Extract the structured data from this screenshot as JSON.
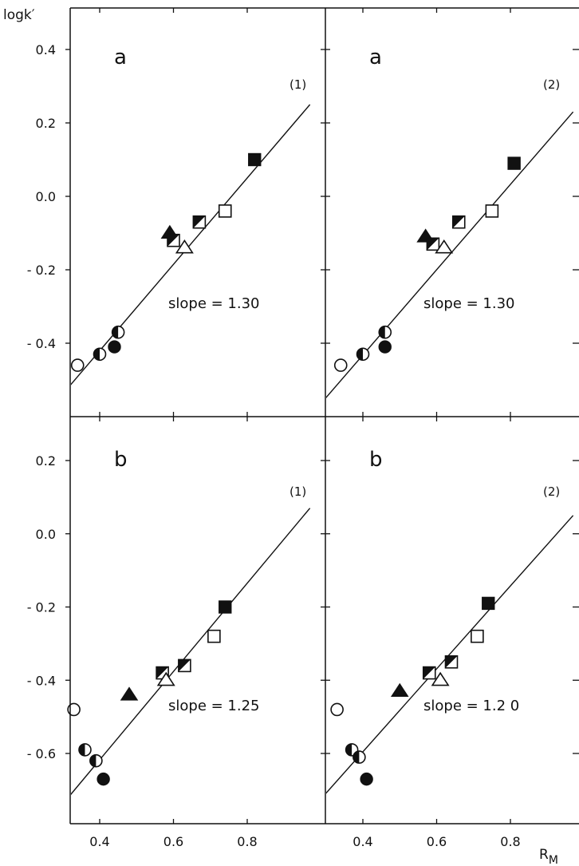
{
  "figure": {
    "y_axis_label": "logk′",
    "x_axis_label": "R_M",
    "x_ticks": [
      "0.4",
      "0.6",
      "0.8"
    ],
    "row_a_y_ticks": [
      "0.4",
      "0.2",
      "0.0",
      "- 0.2",
      "- 0.4"
    ],
    "row_b_y_ticks": [
      "0.2",
      "0.0",
      "- 0.2",
      "- 0.4",
      "- 0.6"
    ],
    "line_color": "#111111",
    "marker_color": "#111111"
  },
  "chart_data": [
    {
      "type": "scatter",
      "row": "a",
      "col": 1,
      "panel_letter": "a",
      "panel_tag": "(1)",
      "slope_text": "slope = 1.30",
      "xlim": [
        0.29,
        1.0
      ],
      "ylim": [
        -0.58,
        0.44
      ],
      "fit_line": {
        "slope": 1.3,
        "x": [
          0.29,
          0.97
        ],
        "y": [
          -0.55,
          0.25
        ]
      },
      "points": [
        {
          "x": 0.34,
          "y": -0.46,
          "marker": "circle-open"
        },
        {
          "x": 0.4,
          "y": -0.43,
          "marker": "circle-half-left"
        },
        {
          "x": 0.44,
          "y": -0.41,
          "marker": "circle-filled"
        },
        {
          "x": 0.45,
          "y": -0.37,
          "marker": "circle-half-left"
        },
        {
          "x": 0.59,
          "y": -0.1,
          "marker": "triangle-filled"
        },
        {
          "x": 0.6,
          "y": -0.12,
          "marker": "square-half"
        },
        {
          "x": 0.63,
          "y": -0.14,
          "marker": "triangle-open"
        },
        {
          "x": 0.67,
          "y": -0.07,
          "marker": "square-half"
        },
        {
          "x": 0.74,
          "y": -0.04,
          "marker": "square-open"
        },
        {
          "x": 0.82,
          "y": 0.1,
          "marker": "square-filled"
        }
      ]
    },
    {
      "type": "scatter",
      "row": "a",
      "col": 2,
      "panel_letter": "a",
      "panel_tag": "(2)",
      "slope_text": "slope = 1.30",
      "xlim": [
        0.29,
        1.0
      ],
      "ylim": [
        -0.58,
        0.44
      ],
      "fit_line": {
        "slope": 1.3,
        "x": [
          0.29,
          0.97
        ],
        "y": [
          -0.56,
          0.23
        ]
      },
      "points": [
        {
          "x": 0.34,
          "y": -0.46,
          "marker": "circle-open"
        },
        {
          "x": 0.4,
          "y": -0.43,
          "marker": "circle-half-left"
        },
        {
          "x": 0.46,
          "y": -0.37,
          "marker": "circle-half-left"
        },
        {
          "x": 0.46,
          "y": -0.41,
          "marker": "circle-filled"
        },
        {
          "x": 0.57,
          "y": -0.11,
          "marker": "triangle-filled"
        },
        {
          "x": 0.59,
          "y": -0.13,
          "marker": "square-half"
        },
        {
          "x": 0.62,
          "y": -0.14,
          "marker": "triangle-open"
        },
        {
          "x": 0.66,
          "y": -0.07,
          "marker": "square-half"
        },
        {
          "x": 0.75,
          "y": -0.04,
          "marker": "square-open"
        },
        {
          "x": 0.81,
          "y": 0.09,
          "marker": "square-filled"
        }
      ]
    },
    {
      "type": "scatter",
      "row": "b",
      "col": 1,
      "panel_letter": "b",
      "panel_tag": "(1)",
      "slope_text": "slope = 1.25",
      "xlim": [
        0.29,
        1.0
      ],
      "ylim": [
        -0.78,
        0.27
      ],
      "fit_line": {
        "slope": 1.25,
        "x": [
          0.29,
          0.97
        ],
        "y": [
          -0.75,
          0.07
        ]
      },
      "points": [
        {
          "x": 0.33,
          "y": -0.48,
          "marker": "circle-open"
        },
        {
          "x": 0.36,
          "y": -0.59,
          "marker": "circle-half-left"
        },
        {
          "x": 0.39,
          "y": -0.62,
          "marker": "circle-half-left"
        },
        {
          "x": 0.41,
          "y": -0.67,
          "marker": "circle-filled"
        },
        {
          "x": 0.48,
          "y": -0.44,
          "marker": "triangle-filled"
        },
        {
          "x": 0.57,
          "y": -0.38,
          "marker": "square-half"
        },
        {
          "x": 0.58,
          "y": -0.4,
          "marker": "triangle-open"
        },
        {
          "x": 0.63,
          "y": -0.36,
          "marker": "square-half"
        },
        {
          "x": 0.71,
          "y": -0.28,
          "marker": "square-open"
        },
        {
          "x": 0.74,
          "y": -0.2,
          "marker": "square-filled"
        }
      ]
    },
    {
      "type": "scatter",
      "row": "b",
      "col": 2,
      "panel_letter": "b",
      "panel_tag": "(2)",
      "slope_text": "slope = 1.2 0",
      "xlim": [
        0.29,
        1.0
      ],
      "ylim": [
        -0.78,
        0.27
      ],
      "fit_line": {
        "slope": 1.2,
        "x": [
          0.29,
          0.97
        ],
        "y": [
          -0.72,
          0.05
        ]
      },
      "points": [
        {
          "x": 0.33,
          "y": -0.48,
          "marker": "circle-open"
        },
        {
          "x": 0.37,
          "y": -0.59,
          "marker": "circle-half-left"
        },
        {
          "x": 0.39,
          "y": -0.61,
          "marker": "circle-half-left"
        },
        {
          "x": 0.41,
          "y": -0.67,
          "marker": "circle-filled"
        },
        {
          "x": 0.5,
          "y": -0.43,
          "marker": "triangle-filled"
        },
        {
          "x": 0.58,
          "y": -0.38,
          "marker": "square-half"
        },
        {
          "x": 0.61,
          "y": -0.4,
          "marker": "triangle-open"
        },
        {
          "x": 0.64,
          "y": -0.35,
          "marker": "square-half"
        },
        {
          "x": 0.71,
          "y": -0.28,
          "marker": "square-open"
        },
        {
          "x": 0.74,
          "y": -0.19,
          "marker": "square-filled"
        }
      ]
    }
  ]
}
